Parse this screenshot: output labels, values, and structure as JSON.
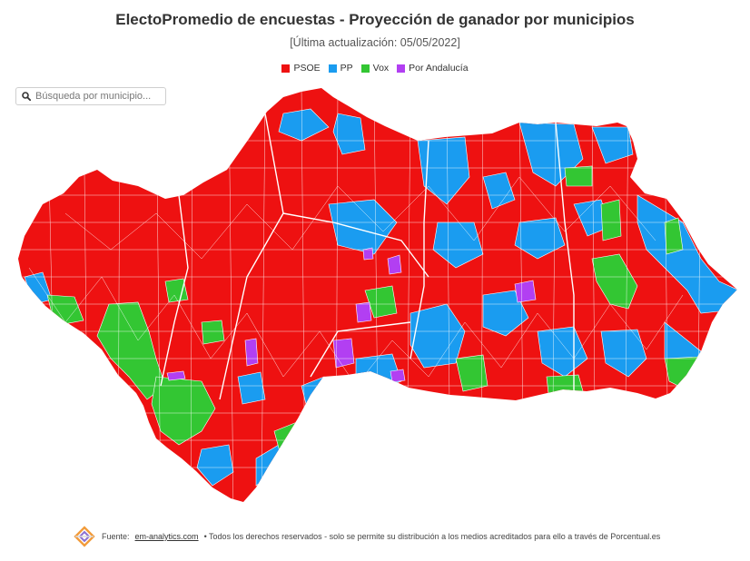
{
  "header": {
    "title": "ElectoPromedio de encuestas - Proyección de ganador por municipios",
    "subtitle": "[Última actualización: 05/05/2022]"
  },
  "legend": [
    {
      "label": "PSOE",
      "color": "#ee1111"
    },
    {
      "label": "PP",
      "color": "#1a9cf0"
    },
    {
      "label": "Vox",
      "color": "#33c633"
    },
    {
      "label": "Por Andalucía",
      "color": "#b23ff2"
    }
  ],
  "search": {
    "placeholder": "Búsqueda por municipio..."
  },
  "map": {
    "region": "Andalucía",
    "winning_colors": {
      "PSOE": "#ee1111",
      "PP": "#1a9cf0",
      "Vox": "#33c633",
      "Por Andalucía": "#b23ff2"
    }
  },
  "footer": {
    "prefix": "Fuente:",
    "link_text": "em-analytics.com",
    "rest": "• Todos los derechos reservados - solo se permite su distribución a los medios acreditados para ello a través de Porcentual.es"
  }
}
